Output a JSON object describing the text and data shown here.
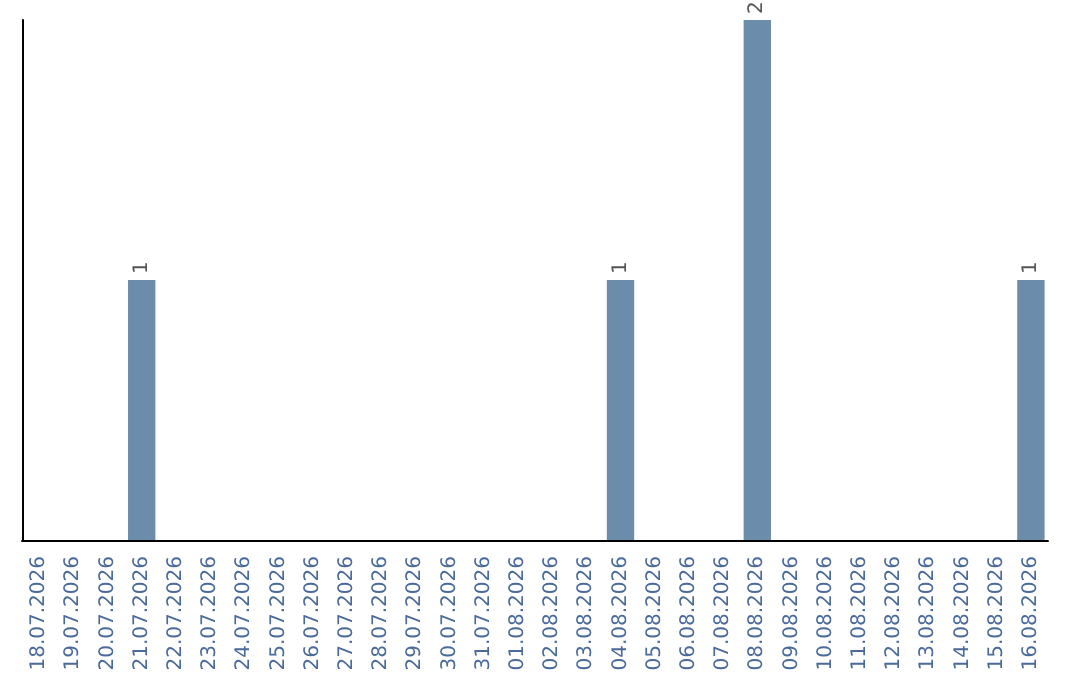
{
  "chart_data": {
    "type": "bar",
    "categories": [
      "18.07.2026",
      "19.07.2026",
      "20.07.2026",
      "21.07.2026",
      "22.07.2026",
      "23.07.2026",
      "24.07.2026",
      "25.07.2026",
      "26.07.2026",
      "27.07.2026",
      "28.07.2026",
      "29.07.2026",
      "30.07.2026",
      "31.07.2026",
      "01.08.2026",
      "02.08.2026",
      "03.08.2026",
      "04.08.2026",
      "05.08.2026",
      "06.08.2026",
      "07.08.2026",
      "08.08.2026",
      "09.08.2026",
      "10.08.2026",
      "11.08.2026",
      "12.08.2026",
      "13.08.2026",
      "14.08.2026",
      "15.08.2026",
      "16.08.2026"
    ],
    "values": [
      0,
      0,
      0,
      1,
      0,
      0,
      0,
      0,
      0,
      0,
      0,
      0,
      0,
      0,
      0,
      0,
      0,
      1,
      0,
      0,
      0,
      2,
      0,
      0,
      0,
      0,
      0,
      0,
      0,
      1
    ],
    "value_labels": [
      null,
      null,
      null,
      "1",
      null,
      null,
      null,
      null,
      null,
      null,
      null,
      null,
      null,
      null,
      null,
      null,
      null,
      "1",
      null,
      null,
      null,
      "2",
      null,
      null,
      null,
      null,
      null,
      null,
      null,
      "1"
    ],
    "color": "#6b8cab"
  }
}
